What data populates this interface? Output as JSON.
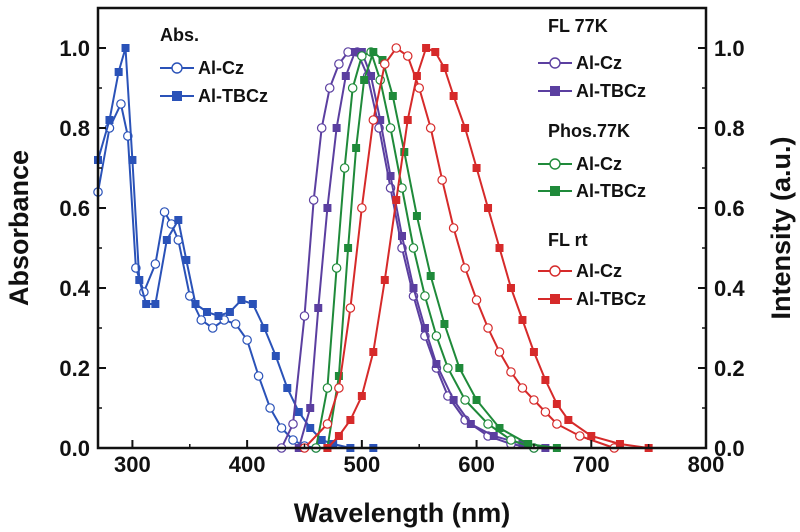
{
  "chart_data": {
    "type": "line",
    "xlabel": "Wavelength (nm)",
    "ylabel_left": "Absorbance",
    "ylabel_right": "Intensity (a.u.)",
    "xlim": [
      270,
      800
    ],
    "ylim_left": [
      0,
      1.1
    ],
    "ylim_right": [
      0,
      1.1
    ],
    "xticks": [
      "300",
      "400",
      "500",
      "600",
      "700",
      "800"
    ],
    "yticks_left": [
      "0.0",
      "0.2",
      "0.4",
      "0.6",
      "0.8",
      "1.0"
    ],
    "yticks_right": [
      "0.0",
      "0.2",
      "0.4",
      "0.6",
      "0.8",
      "1.0"
    ],
    "grid": false,
    "legend_groups": [
      {
        "heading": "Abs.",
        "placement": "top-left",
        "items": [
          {
            "label": "Al-Cz",
            "series": "abs_cz"
          },
          {
            "label": "Al-TBCz",
            "series": "abs_tbcz"
          }
        ]
      },
      {
        "heading": "FL 77K",
        "placement": "top-right",
        "items": [
          {
            "label": "Al-Cz",
            "series": "fl77_cz"
          },
          {
            "label": "Al-TBCz",
            "series": "fl77_tbcz"
          }
        ]
      },
      {
        "heading": "Phos.77K",
        "placement": "right",
        "items": [
          {
            "label": "Al-Cz",
            "series": "ph77_cz"
          },
          {
            "label": "Al-TBCz",
            "series": "ph77_tbcz"
          }
        ]
      },
      {
        "heading": "FL rt",
        "placement": "right",
        "items": [
          {
            "label": "Al-Cz",
            "series": "flrt_cz"
          },
          {
            "label": "Al-TBCz",
            "series": "flrt_tbcz"
          }
        ]
      }
    ],
    "series": [
      {
        "id": "abs_cz",
        "color": "#2a52b8",
        "marker": "open-circle",
        "points": [
          [
            270,
            0.64
          ],
          [
            280,
            0.8
          ],
          [
            290,
            0.86
          ],
          [
            296,
            0.78
          ],
          [
            303,
            0.45
          ],
          [
            310,
            0.39
          ],
          [
            320,
            0.46
          ],
          [
            328,
            0.59
          ],
          [
            334,
            0.56
          ],
          [
            340,
            0.52
          ],
          [
            350,
            0.38
          ],
          [
            360,
            0.32
          ],
          [
            370,
            0.3
          ],
          [
            380,
            0.32
          ],
          [
            390,
            0.31
          ],
          [
            400,
            0.27
          ],
          [
            410,
            0.18
          ],
          [
            420,
            0.1
          ],
          [
            430,
            0.05
          ],
          [
            440,
            0.02
          ],
          [
            450,
            0.005
          ],
          [
            460,
            0.0
          ]
        ]
      },
      {
        "id": "abs_tbcz",
        "color": "#2a52b8",
        "marker": "filled-square",
        "points": [
          [
            270,
            0.72
          ],
          [
            280,
            0.82
          ],
          [
            288,
            0.94
          ],
          [
            294,
            1.0
          ],
          [
            300,
            0.72
          ],
          [
            306,
            0.42
          ],
          [
            312,
            0.36
          ],
          [
            320,
            0.36
          ],
          [
            330,
            0.52
          ],
          [
            340,
            0.57
          ],
          [
            347,
            0.47
          ],
          [
            355,
            0.36
          ],
          [
            365,
            0.34
          ],
          [
            375,
            0.33
          ],
          [
            385,
            0.34
          ],
          [
            395,
            0.37
          ],
          [
            405,
            0.36
          ],
          [
            415,
            0.3
          ],
          [
            425,
            0.23
          ],
          [
            435,
            0.15
          ],
          [
            445,
            0.09
          ],
          [
            455,
            0.05
          ],
          [
            465,
            0.02
          ],
          [
            475,
            0.01
          ],
          [
            490,
            0.0
          ],
          [
            510,
            0.0
          ]
        ]
      },
      {
        "id": "fl77_cz",
        "color": "#5b3fa0",
        "marker": "open-circle",
        "points": [
          [
            430,
            0.0
          ],
          [
            440,
            0.06
          ],
          [
            450,
            0.33
          ],
          [
            458,
            0.62
          ],
          [
            465,
            0.8
          ],
          [
            472,
            0.9
          ],
          [
            480,
            0.96
          ],
          [
            488,
            0.99
          ],
          [
            496,
            0.99
          ],
          [
            505,
            0.93
          ],
          [
            515,
            0.8
          ],
          [
            525,
            0.65
          ],
          [
            535,
            0.5
          ],
          [
            545,
            0.38
          ],
          [
            555,
            0.28
          ],
          [
            565,
            0.2
          ],
          [
            575,
            0.13
          ],
          [
            590,
            0.07
          ],
          [
            610,
            0.03
          ],
          [
            630,
            0.01
          ],
          [
            650,
            0.0
          ]
        ]
      },
      {
        "id": "fl77_tbcz",
        "color": "#5b3fa0",
        "marker": "filled-square",
        "points": [
          [
            445,
            0.0
          ],
          [
            455,
            0.1
          ],
          [
            462,
            0.35
          ],
          [
            470,
            0.6
          ],
          [
            478,
            0.8
          ],
          [
            486,
            0.93
          ],
          [
            494,
            0.99
          ],
          [
            500,
            0.99
          ],
          [
            508,
            0.93
          ],
          [
            516,
            0.82
          ],
          [
            525,
            0.68
          ],
          [
            535,
            0.53
          ],
          [
            545,
            0.4
          ],
          [
            555,
            0.3
          ],
          [
            565,
            0.21
          ],
          [
            580,
            0.12
          ],
          [
            595,
            0.06
          ],
          [
            615,
            0.03
          ],
          [
            640,
            0.01
          ],
          [
            660,
            0.0
          ]
        ]
      },
      {
        "id": "ph77_cz",
        "color": "#1f8a3a",
        "marker": "open-circle",
        "points": [
          [
            460,
            0.0
          ],
          [
            470,
            0.15
          ],
          [
            478,
            0.45
          ],
          [
            485,
            0.7
          ],
          [
            492,
            0.9
          ],
          [
            500,
            0.98
          ],
          [
            508,
            0.99
          ],
          [
            516,
            0.92
          ],
          [
            525,
            0.8
          ],
          [
            535,
            0.65
          ],
          [
            545,
            0.5
          ],
          [
            555,
            0.38
          ],
          [
            565,
            0.28
          ],
          [
            575,
            0.2
          ],
          [
            590,
            0.12
          ],
          [
            610,
            0.06
          ],
          [
            630,
            0.02
          ],
          [
            650,
            0.0
          ]
        ]
      },
      {
        "id": "ph77_tbcz",
        "color": "#1f8a3a",
        "marker": "filled-square",
        "points": [
          [
            470,
            0.0
          ],
          [
            480,
            0.18
          ],
          [
            488,
            0.5
          ],
          [
            495,
            0.75
          ],
          [
            502,
            0.92
          ],
          [
            510,
            0.99
          ],
          [
            518,
            0.97
          ],
          [
            527,
            0.88
          ],
          [
            537,
            0.74
          ],
          [
            548,
            0.58
          ],
          [
            560,
            0.43
          ],
          [
            572,
            0.31
          ],
          [
            585,
            0.2
          ],
          [
            600,
            0.12
          ],
          [
            620,
            0.05
          ],
          [
            645,
            0.01
          ],
          [
            670,
            0.0
          ]
        ]
      },
      {
        "id": "flrt_cz",
        "color": "#d62a2a",
        "marker": "open-circle",
        "points": [
          [
            450,
            0.0
          ],
          [
            470,
            0.06
          ],
          [
            480,
            0.15
          ],
          [
            490,
            0.35
          ],
          [
            500,
            0.6
          ],
          [
            510,
            0.82
          ],
          [
            520,
            0.96
          ],
          [
            530,
            1.0
          ],
          [
            540,
            0.98
          ],
          [
            550,
            0.9
          ],
          [
            560,
            0.8
          ],
          [
            570,
            0.67
          ],
          [
            580,
            0.55
          ],
          [
            590,
            0.45
          ],
          [
            600,
            0.37
          ],
          [
            610,
            0.3
          ],
          [
            620,
            0.24
          ],
          [
            630,
            0.19
          ],
          [
            640,
            0.15
          ],
          [
            650,
            0.12
          ],
          [
            660,
            0.09
          ],
          [
            670,
            0.06
          ],
          [
            690,
            0.03
          ],
          [
            720,
            0.0
          ]
        ]
      },
      {
        "id": "flrt_tbcz",
        "color": "#d62a2a",
        "marker": "filled-square",
        "points": [
          [
            470,
            0.0
          ],
          [
            480,
            0.03
          ],
          [
            490,
            0.07
          ],
          [
            500,
            0.13
          ],
          [
            510,
            0.24
          ],
          [
            520,
            0.42
          ],
          [
            530,
            0.62
          ],
          [
            540,
            0.82
          ],
          [
            548,
            0.93
          ],
          [
            556,
            1.0
          ],
          [
            564,
            0.99
          ],
          [
            572,
            0.95
          ],
          [
            580,
            0.88
          ],
          [
            590,
            0.8
          ],
          [
            600,
            0.7
          ],
          [
            610,
            0.6
          ],
          [
            620,
            0.5
          ],
          [
            630,
            0.4
          ],
          [
            640,
            0.32
          ],
          [
            650,
            0.24
          ],
          [
            660,
            0.17
          ],
          [
            670,
            0.11
          ],
          [
            680,
            0.07
          ],
          [
            700,
            0.03
          ],
          [
            725,
            0.01
          ],
          [
            750,
            0.0
          ]
        ]
      }
    ]
  }
}
